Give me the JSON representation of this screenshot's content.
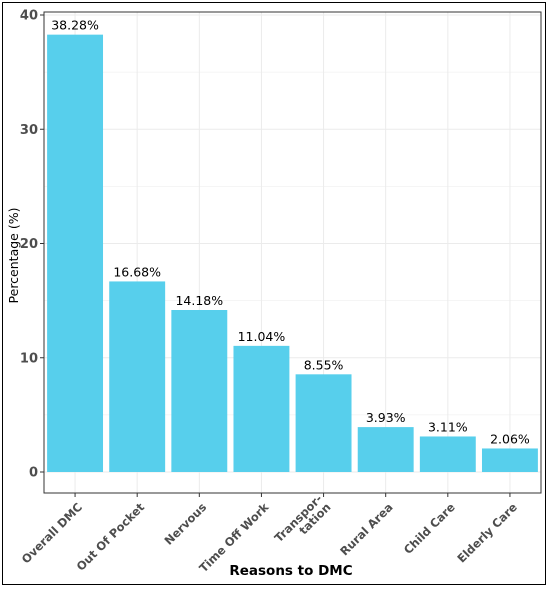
{
  "chart_data": {
    "type": "bar",
    "categories": [
      "Overall DMC",
      "Out Of Pocket",
      "Nervous",
      "Time Off Work",
      "Transpor-\ntation",
      "Rural Area",
      "Child Care",
      "Elderly Care"
    ],
    "values": [
      38.28,
      16.68,
      14.18,
      11.04,
      8.55,
      3.93,
      3.11,
      2.06
    ],
    "data_labels": [
      "38.28%",
      "16.68%",
      "14.18%",
      "11.04%",
      "8.55%",
      "3.93%",
      "3.11%",
      "2.06%"
    ],
    "y_ticks": [
      0,
      10,
      20,
      30,
      40
    ],
    "ylim": [
      0,
      40
    ],
    "xlabel": "Reasons to DMC",
    "ylabel": "Percentage (%)",
    "grid": true,
    "colors": {
      "bar": "#57CFEC",
      "grid": "#EBEBEB",
      "axis": "#333333"
    }
  }
}
